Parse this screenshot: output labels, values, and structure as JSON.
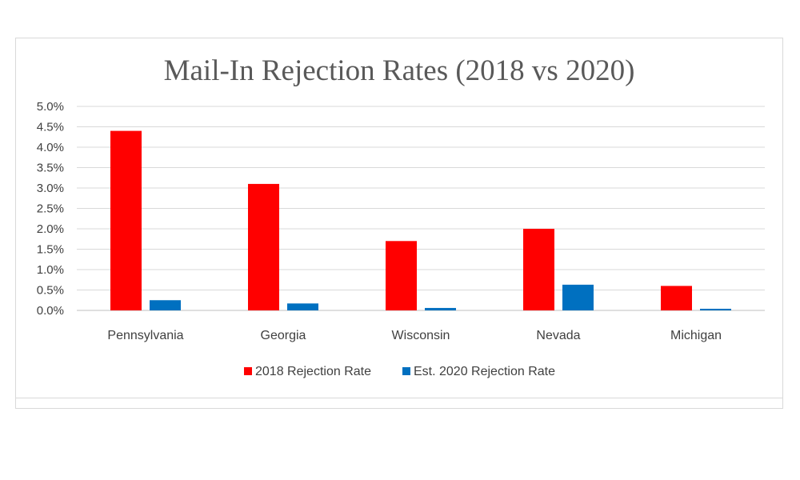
{
  "chart_data": {
    "type": "bar",
    "title": "Mail-In Rejection Rates (2018 vs 2020)",
    "categories": [
      "Pennsylvania",
      "Georgia",
      "Wisconsin",
      "Nevada",
      "Michigan"
    ],
    "series": [
      {
        "name": "2018 Rejection Rate",
        "color": "#ff0000",
        "values": [
          0.044,
          0.031,
          0.017,
          0.02,
          0.006
        ]
      },
      {
        "name": "Est. 2020 Rejection Rate",
        "color": "#0070c0",
        "values": [
          0.0025,
          0.0017,
          0.0006,
          0.0063,
          0.0004
        ]
      }
    ],
    "y_ticks": [
      "0.0%",
      "0.5%",
      "1.0%",
      "1.5%",
      "2.0%",
      "2.5%",
      "3.0%",
      "3.5%",
      "4.0%",
      "4.5%",
      "5.0%"
    ],
    "ylim": [
      0,
      0.05
    ],
    "grid": true,
    "legend_position": "bottom"
  }
}
